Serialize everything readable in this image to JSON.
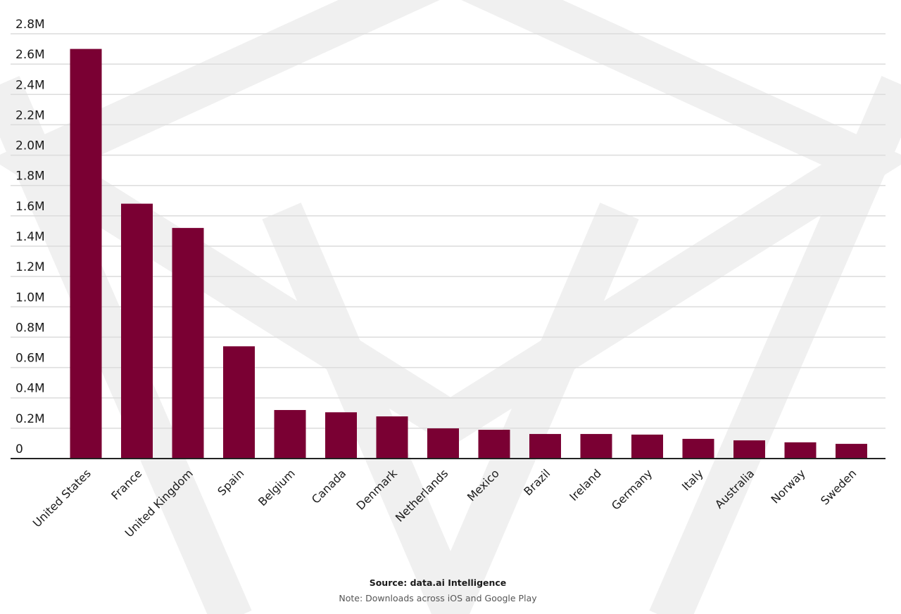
{
  "chart_data": {
    "type": "bar",
    "categories": [
      "United States",
      "France",
      "United Kingdom",
      "Spain",
      "Belgium",
      "Canada",
      "Denmark",
      "Netherlands",
      "Mexico",
      "Brazil",
      "Ireland",
      "Germany",
      "Italy",
      "Australia",
      "Norway",
      "Sweden"
    ],
    "values": [
      2700000,
      1680000,
      1520000,
      740000,
      320000,
      305000,
      278000,
      199000,
      190000,
      162000,
      162000,
      158000,
      130000,
      120000,
      107000,
      97000
    ],
    "color": "#7a0033",
    "ylim": [
      0,
      2800000
    ],
    "yticks": [
      0,
      {
        "value": 200000,
        "label": "0.2M"
      },
      {
        "value": 400000,
        "label": "0.4M"
      },
      {
        "value": 600000,
        "label": "0.6M"
      },
      {
        "value": 800000,
        "label": "0.8M"
      },
      {
        "value": 1000000,
        "label": "1.0M"
      },
      {
        "value": 1200000,
        "label": "1.2M"
      },
      {
        "value": 1400000,
        "label": "1.4M"
      },
      {
        "value": 1600000,
        "label": "1.6M"
      },
      {
        "value": 1800000,
        "label": "1.8M"
      },
      {
        "value": 2000000,
        "label": "2.0M"
      },
      {
        "value": 2200000,
        "label": "2.2M"
      },
      {
        "value": 2400000,
        "label": "2.4M"
      },
      {
        "value": 2600000,
        "label": "2.6M"
      },
      {
        "value": 2800000,
        "label": "2.8M"
      }
    ],
    "grid": true
  },
  "source": "Source: data.ai Intelligence",
  "note": "Note: Downloads across iOS and Google Play"
}
